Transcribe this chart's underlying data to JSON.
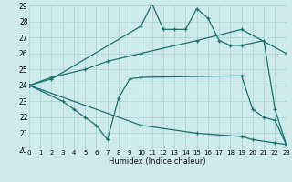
{
  "xlabel": "Humidex (Indice chaleur)",
  "background_color": "#ceeaeb",
  "grid_color": "#aed4d5",
  "line_color": "#1a7070",
  "xlim": [
    0,
    23
  ],
  "ylim": [
    20,
    29
  ],
  "xticks": [
    0,
    1,
    2,
    3,
    4,
    5,
    6,
    7,
    8,
    9,
    10,
    11,
    12,
    13,
    14,
    15,
    16,
    17,
    18,
    19,
    20,
    21,
    22,
    23
  ],
  "yticks": [
    20,
    21,
    22,
    23,
    24,
    25,
    26,
    27,
    28,
    29
  ],
  "lines": [
    {
      "x": [
        0,
        2,
        10,
        11,
        12,
        13,
        14,
        15,
        16,
        17,
        18,
        19,
        21,
        22,
        23
      ],
      "y": [
        24,
        24.4,
        27.7,
        29.1,
        27.5,
        27.5,
        27.5,
        28.8,
        28.2,
        26.8,
        26.5,
        26.5,
        26.8,
        22.5,
        20.3
      ]
    },
    {
      "x": [
        0,
        2,
        5,
        7,
        10,
        15,
        19,
        23
      ],
      "y": [
        24,
        24.5,
        25.0,
        25.5,
        26.0,
        26.8,
        27.5,
        26.0
      ]
    },
    {
      "x": [
        0,
        3,
        4,
        5,
        6,
        7,
        8,
        9,
        10,
        19,
        20,
        21,
        22,
        23
      ],
      "y": [
        24,
        23.0,
        22.5,
        22.0,
        21.5,
        20.6,
        23.2,
        24.4,
        24.5,
        24.6,
        22.5,
        22.0,
        21.8,
        20.3
      ]
    },
    {
      "x": [
        0,
        10,
        15,
        19,
        20,
        22,
        23
      ],
      "y": [
        24,
        21.5,
        21.0,
        20.8,
        20.6,
        20.4,
        20.3
      ]
    }
  ]
}
